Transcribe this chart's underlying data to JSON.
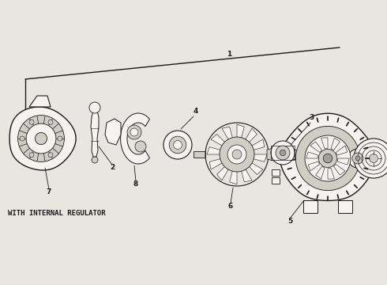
{
  "background_color": "#e8e6e0",
  "line_color": "#1a1a1a",
  "fill_light": "#f5f3ef",
  "fill_mid": "#d0cdc7",
  "fill_dark": "#a0a09a",
  "text_color": "#111111",
  "annotation_text": "WITH INTERNAL REGULATOR",
  "figsize": [
    4.9,
    3.6
  ],
  "dpi": 100,
  "label_fontsize": 6.5,
  "annotation_fontsize": 6.5
}
